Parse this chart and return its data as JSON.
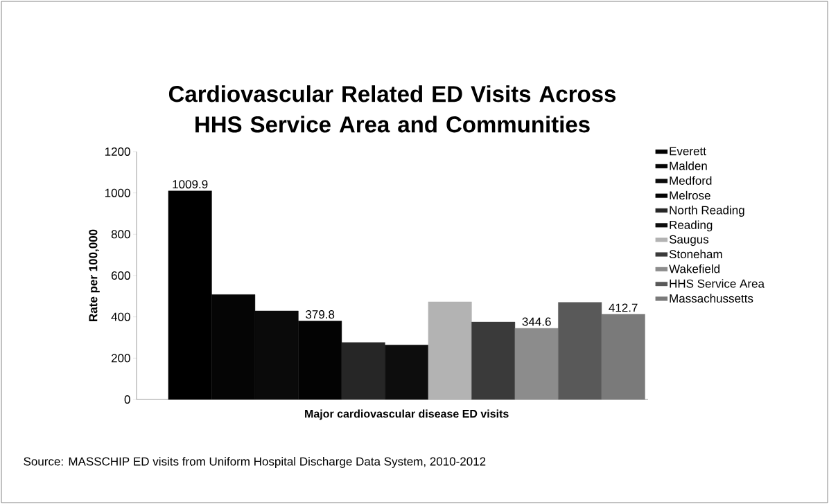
{
  "chart_data": {
    "type": "bar",
    "title": "Cardiovascular Related ED Visits Across HHS Service Area and Communities",
    "categories": [
      "Major cardiovascular  disease ED visits"
    ],
    "ylabel": "Rate per 100,000",
    "ylim": [
      0,
      1200
    ],
    "yticks": [
      0,
      200,
      400,
      600,
      800,
      1000,
      1200
    ],
    "grid": false,
    "legend": "right",
    "series": [
      {
        "name": "Everett",
        "color": "#000000",
        "values": [
          1009.9
        ],
        "value_labels": [
          "1009.9"
        ]
      },
      {
        "name": "Malden",
        "color": "#050505",
        "values": [
          508
        ],
        "value_labels": [
          null
        ]
      },
      {
        "name": "Medford",
        "color": "#0a0a0a",
        "values": [
          429
        ],
        "value_labels": [
          null
        ]
      },
      {
        "name": "Melrose",
        "color": "#030303",
        "values": [
          379.8
        ],
        "value_labels": [
          "379.8"
        ]
      },
      {
        "name": "North Reading",
        "color": "#262626",
        "values": [
          276
        ],
        "value_labels": [
          null
        ]
      },
      {
        "name": "Reading",
        "color": "#0d0d0d",
        "values": [
          264
        ],
        "value_labels": [
          null
        ]
      },
      {
        "name": "Saugus",
        "color": "#b3b3b3",
        "values": [
          473
        ],
        "value_labels": [
          null
        ]
      },
      {
        "name": "Stoneham",
        "color": "#3a3a3a",
        "values": [
          375
        ],
        "value_labels": [
          null
        ]
      },
      {
        "name": "Wakefield",
        "color": "#8c8c8c",
        "values": [
          344.6
        ],
        "value_labels": [
          "344.6"
        ]
      },
      {
        "name": "HHS Service Area",
        "color": "#595959",
        "values": [
          470
        ],
        "value_labels": [
          null
        ]
      },
      {
        "name": "Massachussetts",
        "color": "#7a7a7a",
        "values": [
          412.7
        ],
        "value_labels": [
          "412.7"
        ]
      }
    ],
    "annotations": [
      "Source: MASSCHIP ED visits from Uniform Hospital Discharge Data System, 2010-2012"
    ]
  }
}
